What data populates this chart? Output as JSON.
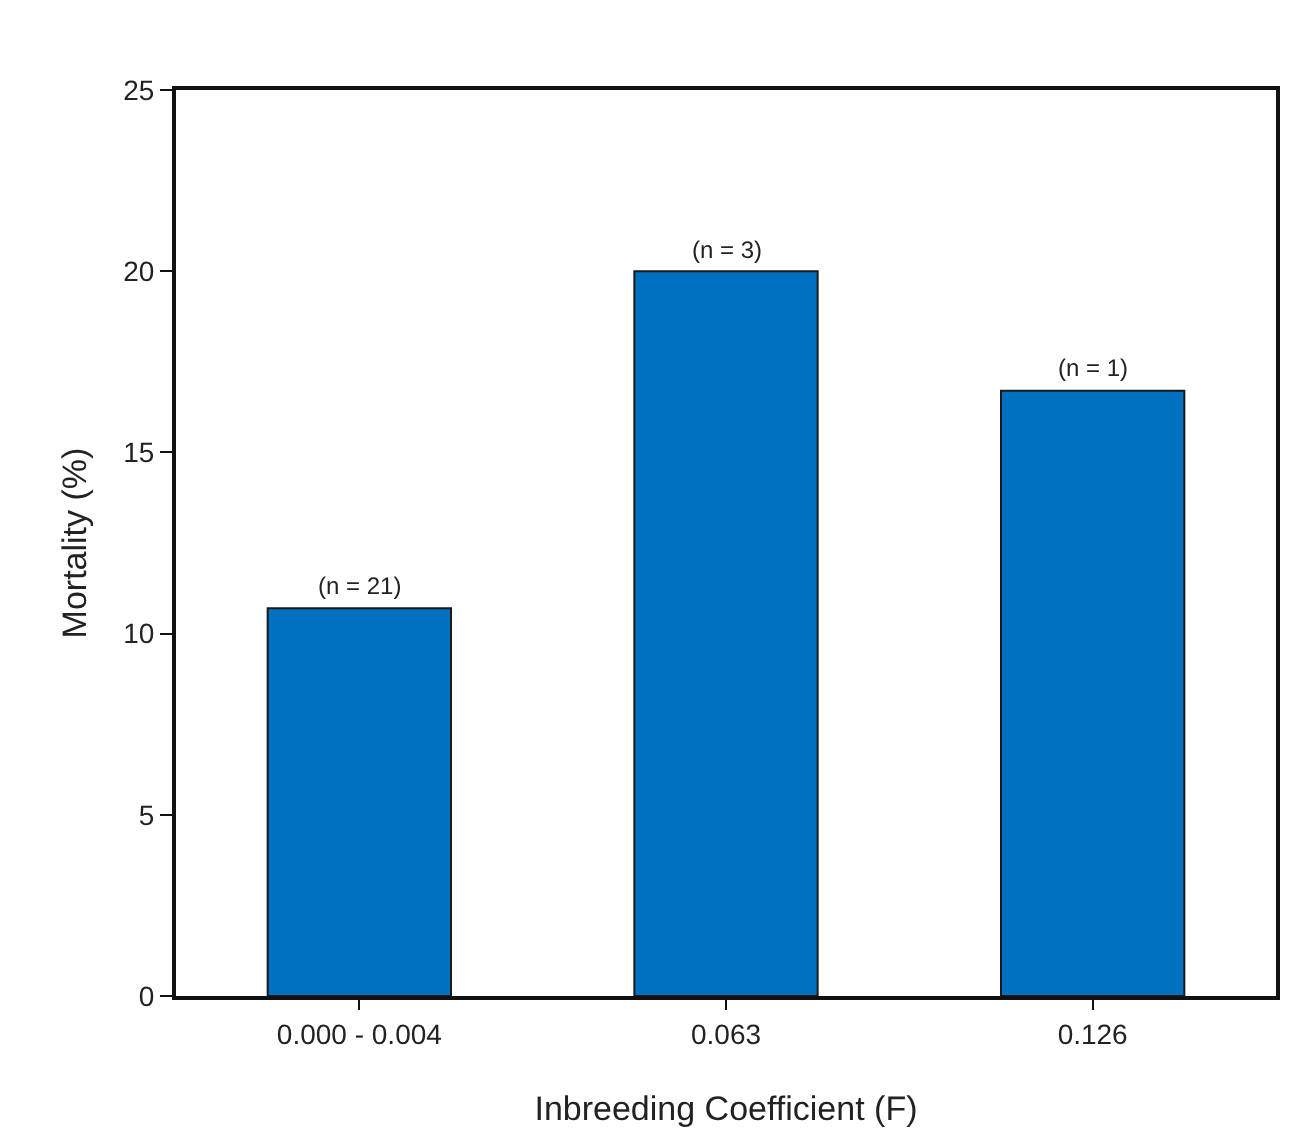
{
  "chart_data": {
    "type": "bar",
    "xlabel": "Inbreeding Coefficient (F)",
    "ylabel": "Mortality (%)",
    "categories": [
      "0.000 - 0.004",
      "0.063",
      "0.126"
    ],
    "values": [
      10.7,
      20,
      16.7
    ],
    "annotations": [
      {
        "text": "(n = 21)",
        "x": "0.000 - 0.004",
        "y": 10.7
      },
      {
        "text": "(n = 3)",
        "x": "0.063",
        "y": 20
      },
      {
        "text": "(n = 1)",
        "x": "0.126",
        "y": 16.7
      }
    ],
    "color": "#0070c0",
    "ylim": [
      0,
      25
    ],
    "yticks": [
      0,
      5,
      10,
      15,
      20,
      25
    ],
    "grid": false,
    "legend": false
  }
}
